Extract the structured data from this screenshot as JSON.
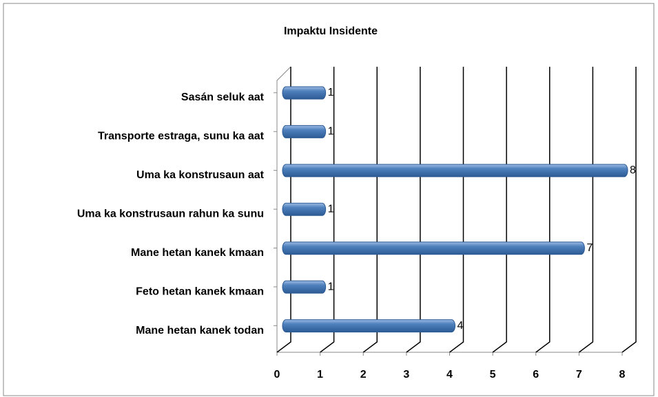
{
  "chart_data": {
    "type": "bar",
    "orientation": "horizontal",
    "title": "Impaktu Insidente",
    "categories": [
      "Sasán seluk aat",
      "Transporte estraga, sunu ka aat",
      "Uma ka konstrusaun aat",
      "Uma ka konstrusaun rahun ka sunu",
      "Mane hetan kanek kmaan",
      "Feto hetan kanek kmaan",
      "Mane hetan kanek todan"
    ],
    "values": [
      1,
      1,
      8,
      1,
      7,
      1,
      4
    ],
    "color": "#4f81bd",
    "xlim": [
      0,
      8
    ],
    "xticks": [
      0,
      1,
      2,
      3,
      4,
      5,
      6,
      7,
      8
    ],
    "grid": true
  }
}
